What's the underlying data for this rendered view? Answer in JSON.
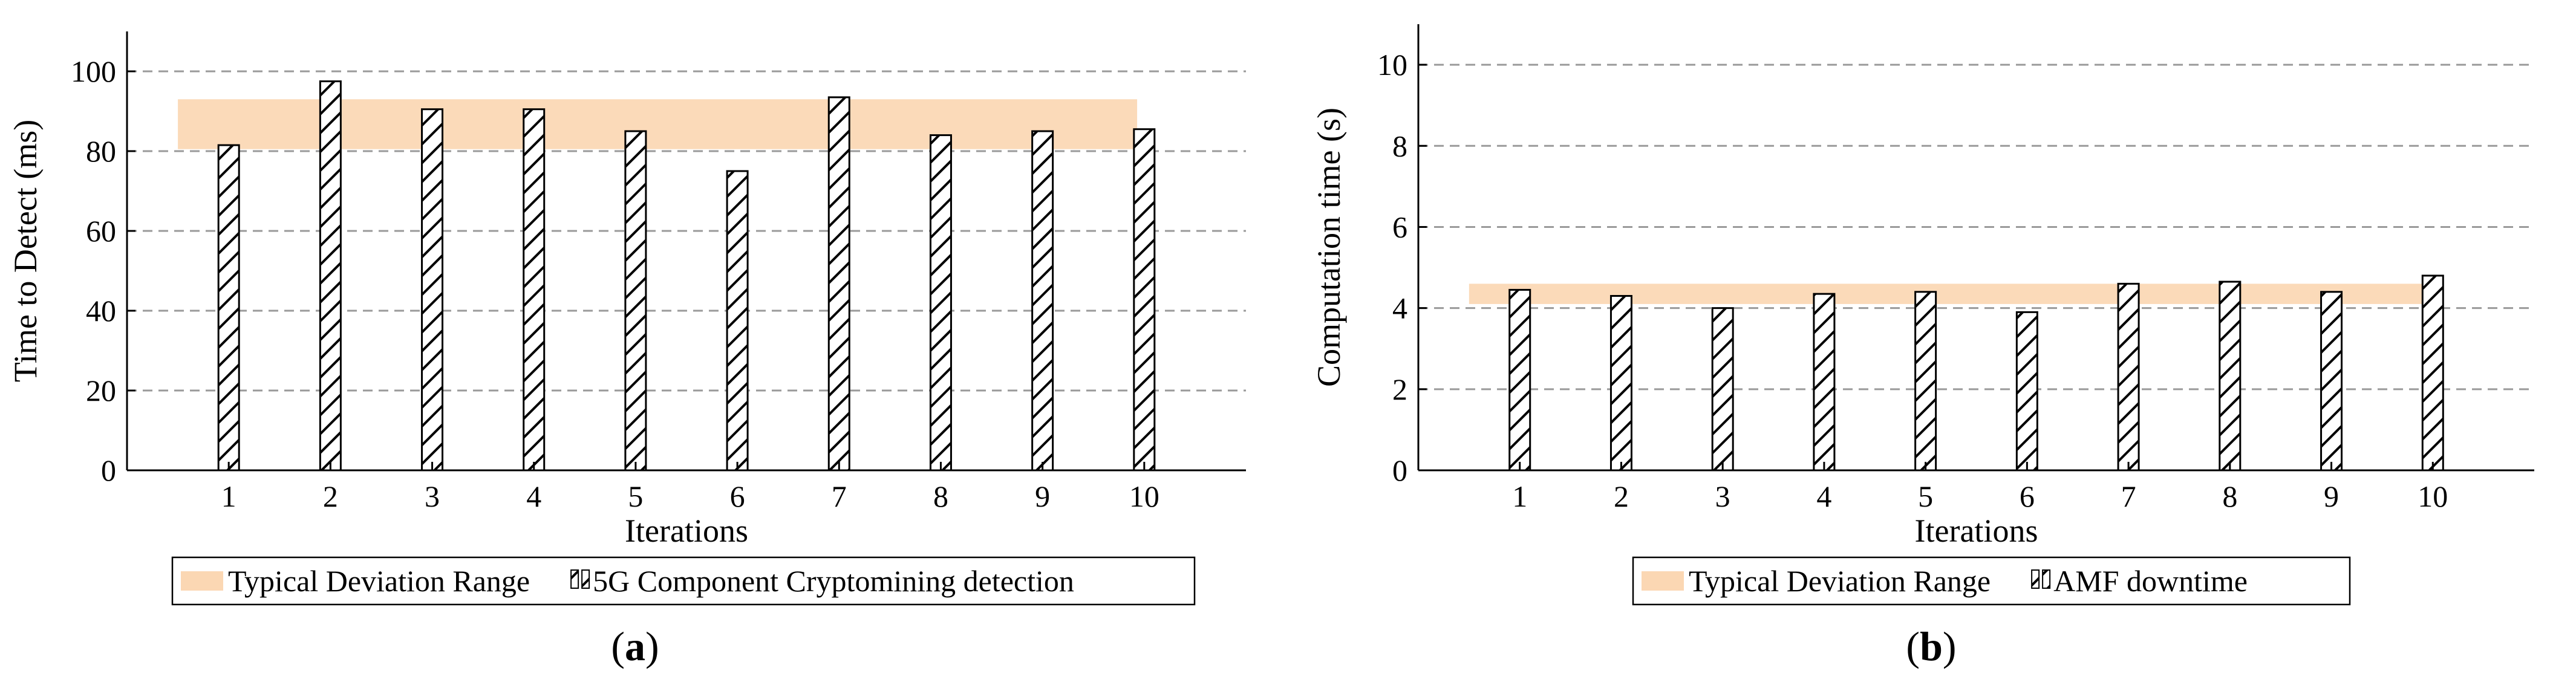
{
  "colors": {
    "band": "#fbd7b3",
    "bar_fill": "#ffffff",
    "bar_stroke": "#000000",
    "grid": "#9a9a9a",
    "axis": "#000000"
  },
  "chart_data": [
    {
      "type": "bar",
      "panel_label": "a",
      "caption_open": "(",
      "caption_close": ")",
      "categories": [
        "1",
        "2",
        "3",
        "4",
        "5",
        "6",
        "7",
        "8",
        "9",
        "10"
      ],
      "series": [
        {
          "name": "5G Component Cryptomining detection",
          "pattern": "diagonal-hatch",
          "values": [
            81.5,
            97.5,
            90.5,
            90.5,
            85,
            75,
            93.5,
            84,
            85,
            85.5
          ]
        }
      ],
      "band": {
        "name": "Typical Deviation Range",
        "low": 80.5,
        "high": 93
      },
      "xlabel": "Iterations",
      "ylabel": "Time to Detect (ms)",
      "ylim": [
        0,
        110
      ],
      "yticks": [
        0,
        20,
        40,
        60,
        80,
        100
      ],
      "ytick_labels": [
        "0",
        "20",
        "40",
        "60",
        "80",
        "100"
      ],
      "grid": "horizontal-dashed",
      "legend_position": "bottom"
    },
    {
      "type": "bar",
      "panel_label": "b",
      "caption_open": "(",
      "caption_close": ")",
      "categories": [
        "1",
        "2",
        "3",
        "4",
        "5",
        "6",
        "7",
        "8",
        "9",
        "10"
      ],
      "series": [
        {
          "name": "AMF downtime",
          "pattern": "diagonal-hatch",
          "values": [
            4.45,
            4.3,
            4.0,
            4.35,
            4.4,
            3.9,
            4.6,
            4.65,
            4.4,
            4.8
          ]
        }
      ],
      "band": {
        "name": "Typical Deviation Range",
        "low": 4.1,
        "high": 4.6
      },
      "xlabel": "Iterations",
      "ylabel": "Computation time (s)",
      "ylim": [
        0,
        11
      ],
      "yticks": [
        0,
        2,
        4,
        6,
        8,
        10
      ],
      "ytick_labels": [
        "0",
        "2",
        "4",
        "6",
        "8",
        "10"
      ],
      "grid": "horizontal-dashed",
      "legend_position": "bottom"
    }
  ]
}
